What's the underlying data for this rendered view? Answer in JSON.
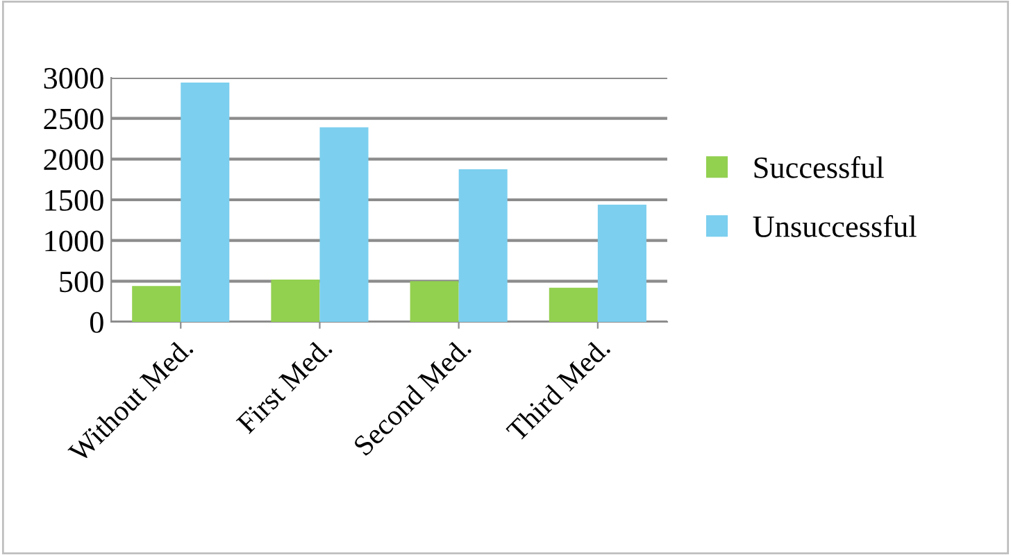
{
  "chart_data": {
    "type": "bar",
    "categories": [
      "Without Med.",
      "First Med.",
      "Second Med.",
      "Third Med."
    ],
    "series": [
      {
        "name": "Successful",
        "color": "#92d050",
        "values": [
          440,
          520,
          500,
          420
        ]
      },
      {
        "name": "Unsuccessful",
        "color": "#7ccfef",
        "values": [
          2940,
          2390,
          1875,
          1440
        ]
      }
    ],
    "ylim": [
      0,
      3000
    ],
    "yticks": [
      0,
      500,
      1000,
      1500,
      2000,
      2500,
      3000
    ],
    "grid": "y",
    "legend": "right"
  }
}
